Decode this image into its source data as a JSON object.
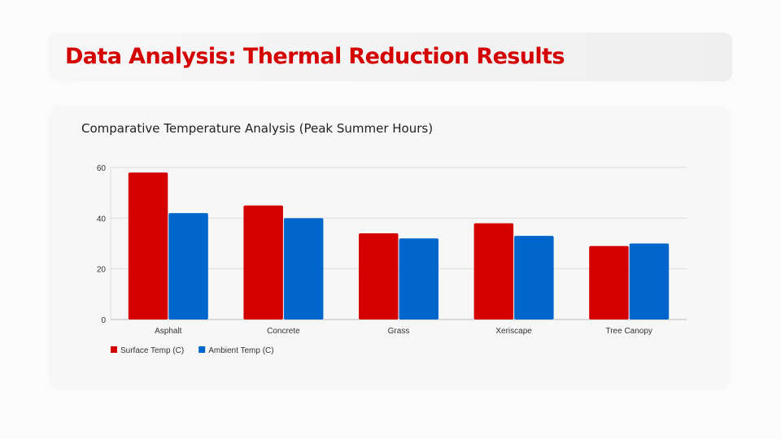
{
  "header": {
    "title": "Data Analysis: Thermal Reduction Results"
  },
  "chart_data": {
    "type": "bar",
    "title": "Comparative Temperature Analysis (Peak Summer Hours)",
    "categories": [
      "Asphalt",
      "Concrete",
      "Grass",
      "Xeriscape",
      "Tree Canopy"
    ],
    "series": [
      {
        "name": "Surface Temp (C)",
        "color": "#d40000",
        "values": [
          58,
          45,
          34,
          38,
          29
        ]
      },
      {
        "name": "Ambient Temp (C)",
        "color": "#0066cc",
        "values": [
          42,
          40,
          32,
          33,
          30
        ]
      }
    ],
    "yticks": [
      "0",
      "20",
      "40",
      "60"
    ],
    "ylim": [
      0,
      60
    ],
    "xlabel": "",
    "ylabel": "",
    "grid": true,
    "legend": "bottom-left"
  }
}
